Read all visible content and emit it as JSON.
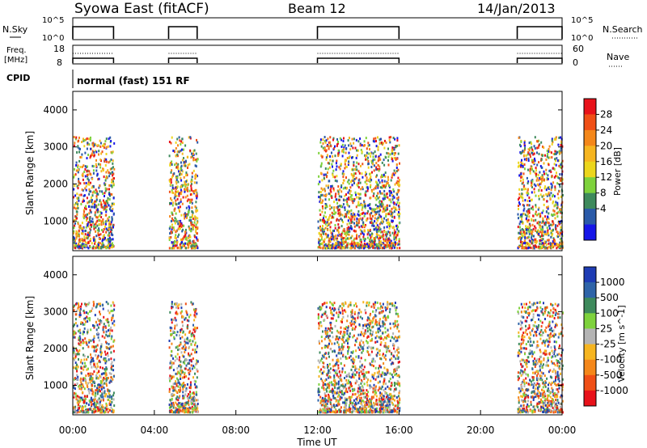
{
  "header": {
    "title": "Syowa East (fitACF)",
    "beam": "Beam 12",
    "date": "14/Jan/2013"
  },
  "chart_data": [
    {
      "type": "line",
      "id": "nsky-panel",
      "left_label": "N.Sky",
      "right_label": "N.Search",
      "left_ticks": [
        "10^5",
        "10^0"
      ],
      "right_ticks": [
        "10^5",
        "10^0"
      ],
      "segments": [
        [
          0,
          2
        ],
        [
          4.7,
          6.1
        ],
        [
          12,
          16
        ],
        [
          21.8,
          24
        ]
      ]
    },
    {
      "type": "line",
      "id": "freq-panel",
      "left_label": [
        "Freq.",
        "[MHz]"
      ],
      "right_label": "Nave",
      "left_ticks": [
        "18",
        "8"
      ],
      "right_ticks": [
        "60",
        "0"
      ],
      "segments": [
        [
          0,
          2
        ],
        [
          4.7,
          6.1
        ],
        [
          12,
          16
        ],
        [
          21.8,
          24
        ]
      ]
    },
    {
      "type": "table",
      "id": "cpid-panel",
      "label": "CPID",
      "value": "normal (fast) 151 RF"
    },
    {
      "type": "heatmap",
      "id": "power-panel",
      "ylabel": "Slant Range [km]",
      "xlim": [
        0,
        24
      ],
      "ylim": [
        200,
        4500
      ],
      "y_ticks": [
        1000,
        2000,
        3000,
        4000
      ],
      "y_tick_labels": [
        "1000",
        "2000",
        "3000",
        "4000"
      ],
      "colorbar": {
        "label": "Power [dB]",
        "tick_labels": [
          "28",
          "24",
          "20",
          "16",
          "12",
          "8",
          "4"
        ],
        "colors": [
          "#e8121a",
          "#f04f16",
          "#f4871a",
          "#f6b520",
          "#ecd61c",
          "#7ed23c",
          "#3e8a5c",
          "#2a5aa8",
          "#1616e8"
        ]
      },
      "data_segments": [
        [
          0,
          2
        ],
        [
          4.7,
          6.1
        ],
        [
          12,
          16
        ],
        [
          21.8,
          24
        ]
      ]
    },
    {
      "type": "heatmap",
      "id": "velocity-panel",
      "ylabel": "Slant Range [km]",
      "xlabel": "Time UT",
      "xlim": [
        0,
        24
      ],
      "ylim": [
        200,
        4500
      ],
      "x_ticks": [
        0,
        4,
        8,
        12,
        16,
        20,
        24
      ],
      "x_tick_labels": [
        "00:00",
        "04:00",
        "08:00",
        "12:00",
        "16:00",
        "20:00",
        "00:00"
      ],
      "y_ticks": [
        1000,
        2000,
        3000,
        4000
      ],
      "y_tick_labels": [
        "1000",
        "2000",
        "3000",
        "4000"
      ],
      "colorbar": {
        "label": "Velocity  [m s^-1]",
        "tick_labels": [
          "1000",
          "500",
          "100",
          "25",
          "-25",
          "-100",
          "-500",
          "-1000"
        ],
        "colors": [
          "#1e3cb4",
          "#2f64a8",
          "#3e8a5c",
          "#7ed23c",
          "#b4b4b4",
          "#f6b520",
          "#f4871a",
          "#f04f16",
          "#e8121a"
        ]
      },
      "data_segments": [
        [
          0,
          2
        ],
        [
          4.7,
          6.1
        ],
        [
          12,
          16
        ],
        [
          21.8,
          24
        ]
      ]
    }
  ]
}
